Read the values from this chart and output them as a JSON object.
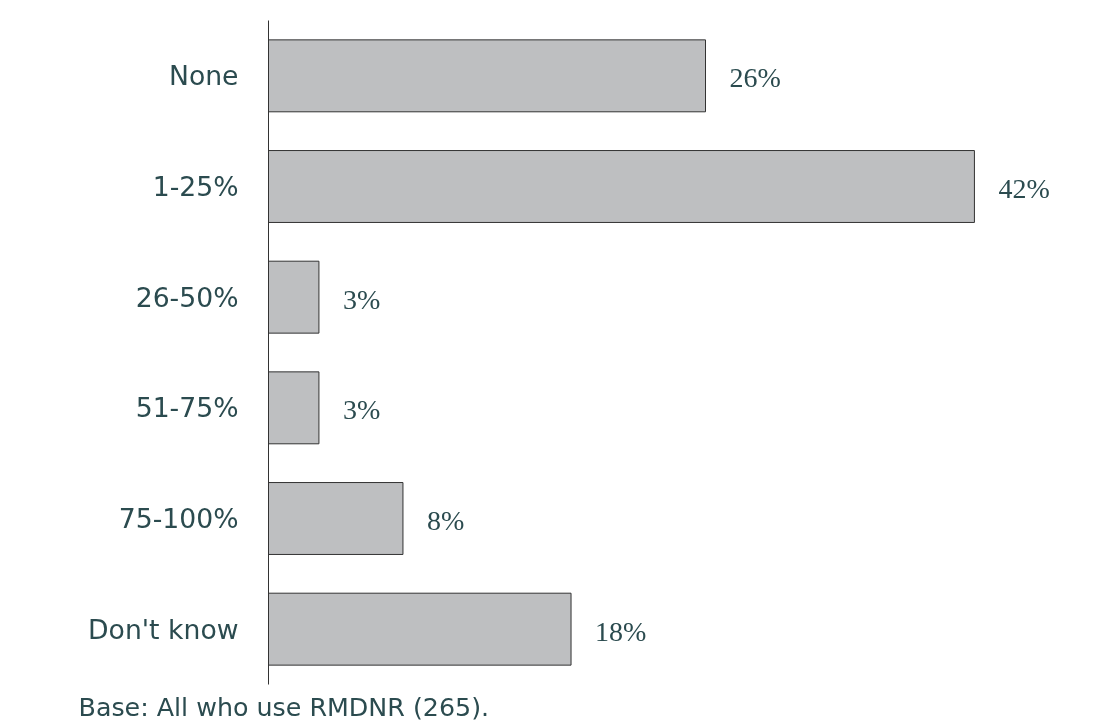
{
  "chart_data": {
    "type": "bar",
    "orientation": "horizontal",
    "categories": [
      "None",
      "1-25%",
      "26-50%",
      "51-75%",
      "75-100%",
      "Don't know"
    ],
    "values": [
      26,
      42,
      3,
      3,
      8,
      18
    ],
    "value_labels": [
      "26%",
      "42%",
      "3%",
      "3%",
      "8%",
      "18%"
    ],
    "color": "#bebfc1",
    "grid": false,
    "annotations": [
      "Base: All who use RMDNR (265)."
    ]
  }
}
